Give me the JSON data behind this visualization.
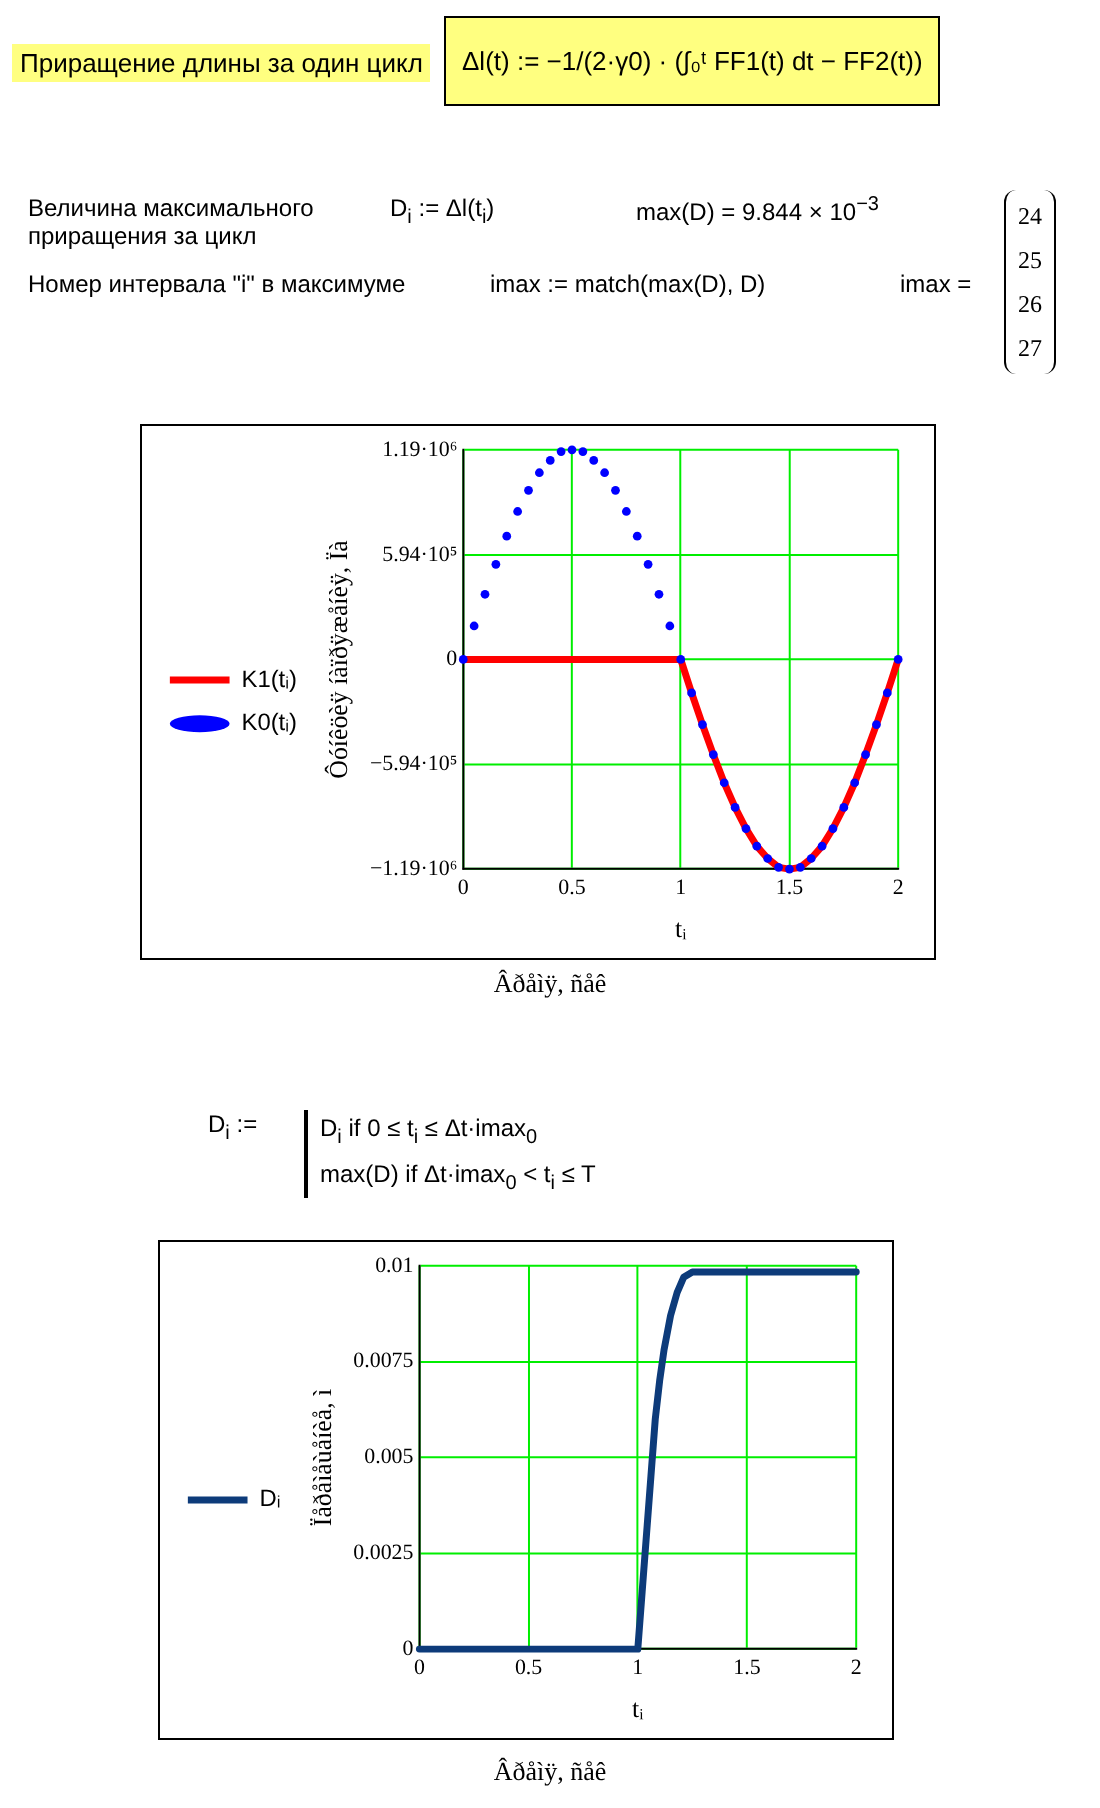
{
  "chart_data": [
    {
      "type": "line",
      "ylabel": "Ôóíêöèÿ íàïðÿæåíèÿ, Ïà",
      "xlabel": "tᵢ",
      "annotations": [
        "Приращение длины за один цикл",
        "Δl(t) := −1/(2·γ0) · (∫₀ᵗ FF1(t) dt − FF2(t))",
        "Величина максимального приращения за цикл",
        "D$_{i}$ := Δl(t$_{i}$)",
        "max(D) = 9.844 × 10$^{−3}$",
        "Номер интервала \"i\" в максимуме",
        "imax := match(max(D), D)",
        "imax =",
        "24",
        "25",
        "26",
        "27",
        "Âðåìÿ, ñåê"
      ],
      "x": [
        0,
        0.05,
        0.1,
        0.15,
        0.2,
        0.25,
        0.3,
        0.35,
        0.4,
        0.45,
        0.5,
        0.55,
        0.6,
        0.65,
        0.7,
        0.75,
        0.8,
        0.85,
        0.9,
        0.95,
        1,
        1.05,
        1.1,
        1.15,
        1.2,
        1.25,
        1.3,
        1.35,
        1.4,
        1.45,
        1.5,
        1.55,
        1.6,
        1.65,
        1.7,
        1.75,
        1.8,
        1.85,
        1.9,
        1.95,
        2
      ],
      "series": [
        {
          "name": "K1(tᵢ)",
          "type": "line",
          "color": "#ff0000",
          "marker": "none",
          "values": [
            0,
            0,
            0,
            0,
            0,
            0,
            0,
            0,
            0,
            0,
            0,
            0,
            0,
            0,
            0,
            0,
            0,
            0,
            0,
            0,
            0,
            -190000,
            -370000,
            -540000,
            -700000,
            -840000,
            -960000,
            -1060000,
            -1130000,
            -1180000,
            -1190000,
            -1180000,
            -1130000,
            -1060000,
            -960000,
            -840000,
            -700000,
            -540000,
            -370000,
            -190000,
            0
          ]
        },
        {
          "name": "K0(tᵢ)",
          "type": "scatter",
          "color": "#0000ff",
          "marker": "circle",
          "values": [
            0,
            190000,
            370000,
            540000,
            700000,
            840000,
            960000,
            1060000,
            1130000,
            1180000,
            1190000,
            1180000,
            1130000,
            1060000,
            960000,
            840000,
            700000,
            540000,
            370000,
            190000,
            0,
            -190000,
            -370000,
            -540000,
            -700000,
            -840000,
            -960000,
            -1060000,
            -1130000,
            -1180000,
            -1190000,
            -1180000,
            -1130000,
            -1060000,
            -960000,
            -840000,
            -700000,
            -540000,
            -370000,
            -190000,
            0
          ]
        }
      ],
      "xlim": [
        0,
        2
      ],
      "xticks": [
        0,
        0.5,
        1,
        1.5,
        2
      ],
      "ylim": [
        -1190000,
        1190000
      ],
      "yticks": [
        {
          "value": -1190000,
          "label": "−1.19·10⁶"
        },
        {
          "value": -594000,
          "label": "−5.94·10⁵"
        },
        0,
        {
          "value": 594000,
          "label": "5.94·10⁵"
        },
        {
          "value": 1190000,
          "label": "1.19·10⁶"
        }
      ],
      "grid": true,
      "legend": "left"
    },
    {
      "type": "line",
      "ylabel": "Ïåðåìåùåíèå, ì",
      "xlabel": "tᵢ",
      "annotations": [
        "D$_{i}$ :=",
        "D$_{i}$   if   0 ≤ t$_{i}$ ≤ Δt·imax$_{0}$",
        "max(D)   if   Δt·imax$_{0}$ < t$_{i}$ ≤ T",
        "Âðåìÿ, ñåê"
      ],
      "series": [
        {
          "name": "Dᵢ",
          "color": "#0d3b7a",
          "marker": "none",
          "x": [
            0,
            0.5,
            1,
            1.02,
            1.04,
            1.06,
            1.08,
            1.1,
            1.12,
            1.15,
            1.18,
            1.21,
            1.25,
            1.5,
            2
          ],
          "values": [
            0,
            0,
            0,
            0.0015,
            0.003,
            0.0045,
            0.006,
            0.007,
            0.0078,
            0.0087,
            0.0093,
            0.0097,
            0.00984,
            0.00984,
            0.00984
          ]
        }
      ],
      "xlim": [
        0,
        2
      ],
      "xticks": [
        0,
        0.5,
        1,
        1.5,
        2
      ],
      "ylim": [
        0,
        0.01
      ],
      "yticks": [
        0,
        0.0025,
        0.005,
        0.0075,
        0.01
      ],
      "grid": true,
      "legend": "left"
    }
  ]
}
